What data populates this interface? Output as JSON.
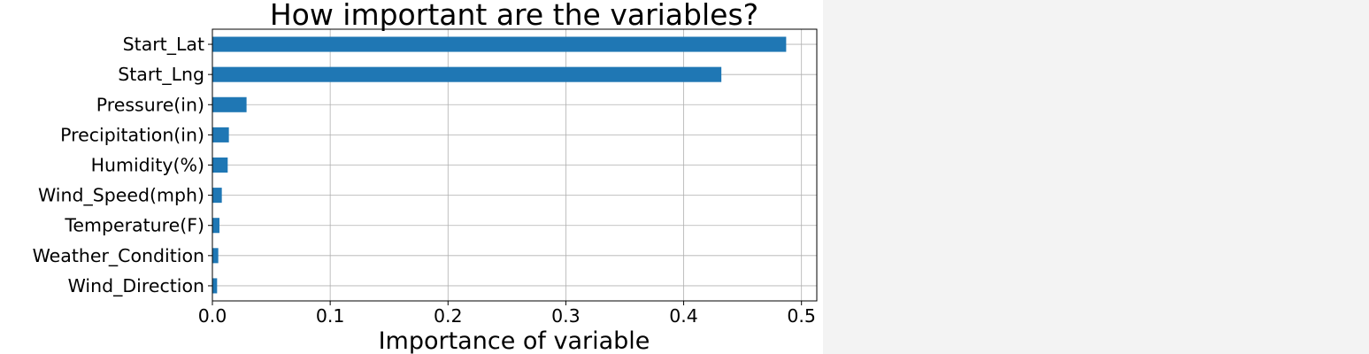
{
  "chart_data": {
    "type": "bar",
    "orientation": "horizontal",
    "title": "How important are the variables?",
    "xlabel": "Importance of variable",
    "ylabel": "",
    "categories": [
      "Start_Lat",
      "Start_Lng",
      "Pressure(in)",
      "Precipitation(in)",
      "Humidity(%)",
      "Wind_Speed(mph)",
      "Temperature(F)",
      "Weather_Condition",
      "Wind_Direction"
    ],
    "values": [
      0.487,
      0.432,
      0.029,
      0.014,
      0.013,
      0.008,
      0.006,
      0.005,
      0.004
    ],
    "xlim": [
      0.0,
      0.513
    ],
    "xticks": [
      0.0,
      0.1,
      0.2,
      0.3,
      0.4,
      0.5
    ],
    "xtick_labels": [
      "0.0",
      "0.1",
      "0.2",
      "0.3",
      "0.4",
      "0.5"
    ],
    "grid": true,
    "bar_color": "#1f77b4"
  }
}
